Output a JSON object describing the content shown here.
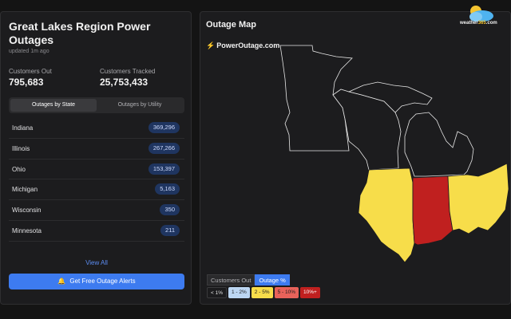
{
  "sidebar": {
    "title": "Great Lakes Region Power Outages",
    "updated": "updated 1m ago",
    "customers_out_label": "Customers Out",
    "customers_out_value": "795,683",
    "customers_tracked_label": "Customers Tracked",
    "customers_tracked_value": "25,753,433",
    "tabs": [
      {
        "label": "Outages by State",
        "active": true
      },
      {
        "label": "Outages by Utility",
        "active": false
      }
    ],
    "rows": [
      {
        "name": "Indiana",
        "value": "369,296"
      },
      {
        "name": "Illinois",
        "value": "267,266"
      },
      {
        "name": "Ohio",
        "value": "153,397"
      },
      {
        "name": "Michigan",
        "value": "5,163"
      },
      {
        "name": "Wisconsin",
        "value": "350"
      },
      {
        "name": "Minnesota",
        "value": "211"
      }
    ],
    "view_all": "View All",
    "alert_button": "Get Free Outage Alerts",
    "bell_icon": "bell-icon"
  },
  "map": {
    "title": "Outage Map",
    "logo_text": "PowerOutage.com",
    "legend_toggle": [
      {
        "label": "Customers Out",
        "active": false
      },
      {
        "label": "Outage %",
        "active": true
      }
    ],
    "legend": [
      {
        "label": "< 1%",
        "color": "#1c1c1e",
        "text_color": "#e0e0e0"
      },
      {
        "label": "1 - 2%",
        "color": "#bcd6f2",
        "text_color": "#1c1c1e"
      },
      {
        "label": "2 - 5%",
        "color": "#f7dd4a",
        "text_color": "#1c1c1e"
      },
      {
        "label": "5 - 10%",
        "color": "#e8625a",
        "text_color": "#1c1c1e"
      },
      {
        "label": "10%+",
        "color": "#c0201f",
        "text_color": "#ffffff"
      }
    ],
    "state_colors": {
      "Minnesota": "#1c1c1e",
      "Wisconsin": "#1c1c1e",
      "Michigan": "#1c1c1e",
      "Illinois": "#f7dd4a",
      "Indiana": "#c0201f",
      "Ohio": "#f7dd4a"
    }
  },
  "brand": {
    "site_pre": "weather",
    "site_num": "365",
    "site_post": ".com"
  }
}
